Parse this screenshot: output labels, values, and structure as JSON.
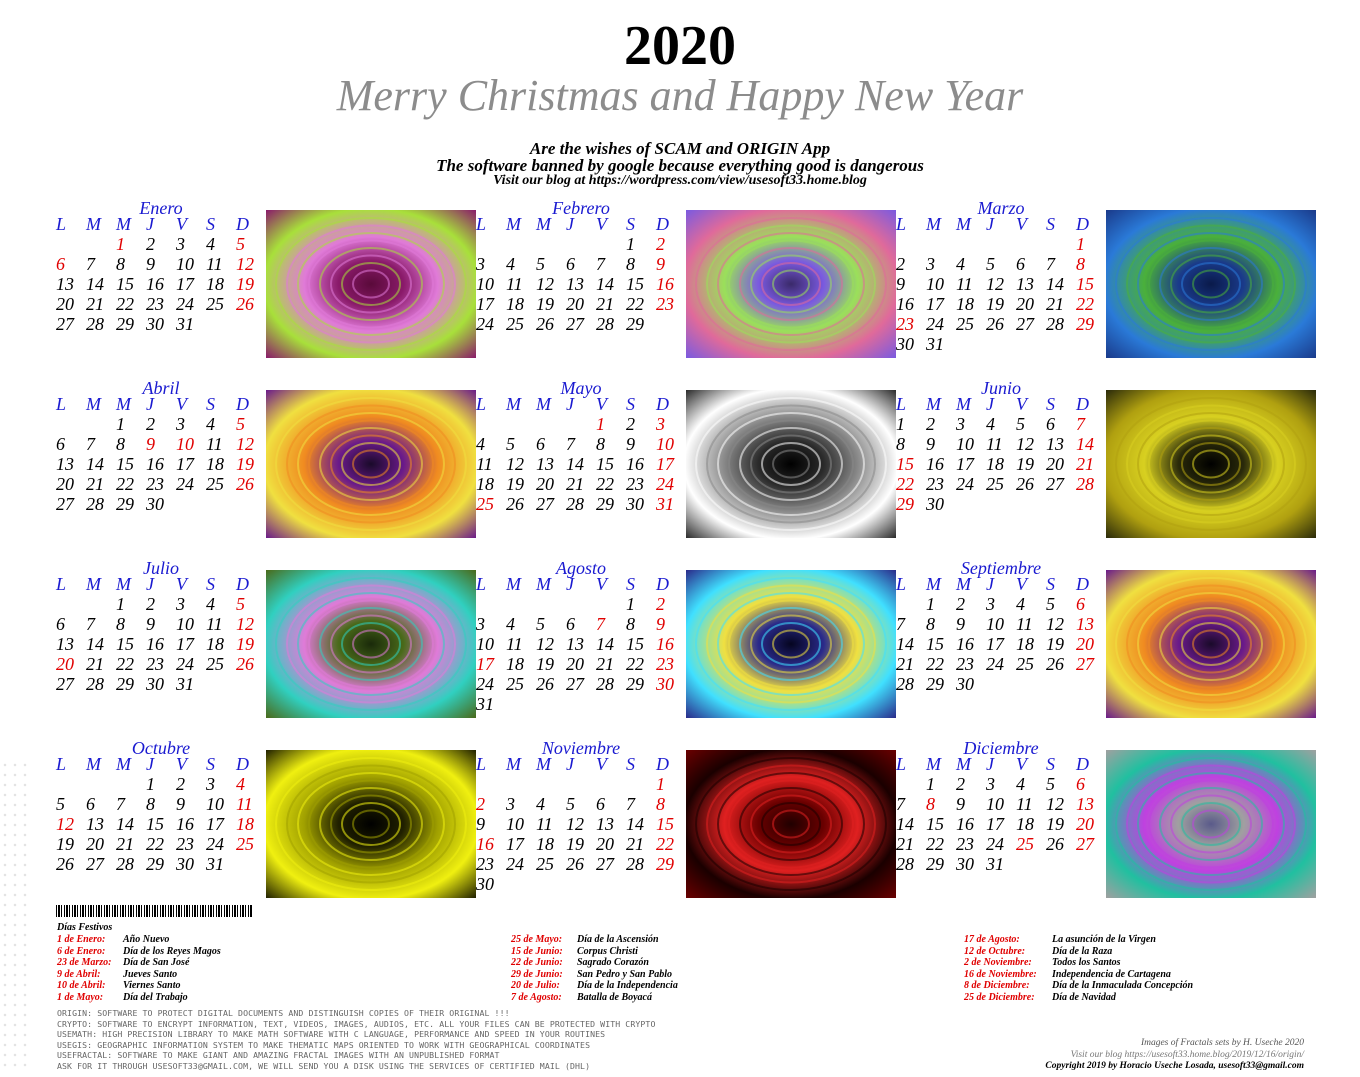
{
  "header": {
    "year": "2020",
    "greeting": "Merry Christmas and Happy New Year",
    "wish1": "Are the wishes of SCAM and ORIGIN App",
    "wish2": "The software banned by google because everything good is dangerous",
    "wish3": "Visit our blog at https://wordpress.com/view/usesoft33.home.blog"
  },
  "weekdays": [
    "L",
    "M",
    "M",
    "J",
    "V",
    "S",
    "D"
  ],
  "months": [
    {
      "name": "Enero",
      "offset": 2,
      "days": 31,
      "red": [
        1,
        6
      ]
    },
    {
      "name": "Febrero",
      "offset": 5,
      "days": 29,
      "red": []
    },
    {
      "name": "Marzo",
      "offset": 6,
      "days": 31,
      "red": [
        23
      ]
    },
    {
      "name": "Abril",
      "offset": 2,
      "days": 30,
      "red": [
        9,
        10
      ]
    },
    {
      "name": "Mayo",
      "offset": 4,
      "days": 31,
      "red": [
        1,
        25
      ]
    },
    {
      "name": "Junio",
      "offset": 0,
      "days": 30,
      "red": [
        15,
        22,
        29
      ]
    },
    {
      "name": "Julio",
      "offset": 2,
      "days": 31,
      "red": [
        20
      ]
    },
    {
      "name": "Agosto",
      "offset": 5,
      "days": 31,
      "red": [
        7,
        17
      ]
    },
    {
      "name": "Septiembre",
      "offset": 1,
      "days": 30,
      "red": []
    },
    {
      "name": "Octubre",
      "offset": 3,
      "days": 31,
      "red": [
        12
      ]
    },
    {
      "name": "Noviembre",
      "offset": 6,
      "days": 30,
      "red": [
        2,
        16
      ]
    },
    {
      "name": "Diciembre",
      "offset": 1,
      "days": 31,
      "red": [
        8,
        25
      ]
    }
  ],
  "fractals": [
    {
      "name": "fractal-image-enero",
      "bg": "#a8e03a",
      "c1": "#e07ad8",
      "c2": "#8a1a6a",
      "c3": "#5a0a3a"
    },
    {
      "name": "fractal-image-febrero",
      "bg": "#e06a9a",
      "c1": "#9ae05a",
      "c2": "#7a5ae0",
      "c3": "#3a2a6a"
    },
    {
      "name": "fractal-image-marzo",
      "bg": "#2a7ad8",
      "c1": "#4ab03a",
      "c2": "#1a3a8a",
      "c3": "#0a1a4a"
    },
    {
      "name": "fractal-image-abril",
      "bg": "#f0e040",
      "c1": "#f08a20",
      "c2": "#6a1a8a",
      "c3": "#1a0a2a"
    },
    {
      "name": "fractal-image-mayo",
      "bg": "#ffffff",
      "c1": "#888888",
      "c2": "#2a2a2a",
      "c3": "#000000"
    },
    {
      "name": "fractal-image-junio",
      "bg": "#b0a010",
      "c1": "#d8d020",
      "c2": "#2a2a0a",
      "c3": "#000000"
    },
    {
      "name": "fractal-image-julio",
      "bg": "#30d0c0",
      "c1": "#e07ad8",
      "c2": "#4a6a1a",
      "c3": "#1a2a0a"
    },
    {
      "name": "fractal-image-agosto",
      "bg": "#40e0ff",
      "c1": "#f0e040",
      "c2": "#2a2a8a",
      "c3": "#050520"
    },
    {
      "name": "fractal-image-septiembre",
      "bg": "#f0e040",
      "c1": "#f08a20",
      "c2": "#6a1a8a",
      "c3": "#1a0a2a"
    },
    {
      "name": "fractal-image-octubre",
      "bg": "#f0f010",
      "c1": "#a0a000",
      "c2": "#202000",
      "c3": "#000000"
    },
    {
      "name": "fractal-image-noviembre",
      "bg": "#1a0000",
      "c1": "#e02020",
      "c2": "#6a0000",
      "c3": "#200000"
    },
    {
      "name": "fractal-image-diciembre",
      "bg": "#20c0a0",
      "c1": "#c040e0",
      "c2": "#a0a0a0",
      "c3": "#5a5a8a"
    }
  ],
  "holidays_title": "Días Festivos",
  "holidays": [
    [
      {
        "date": "1 de Enero:",
        "name": "Año Nuevo"
      },
      {
        "date": "6 de Enero:",
        "name": "Día de los Reyes Magos"
      },
      {
        "date": "23 de Marzo:",
        "name": "Día de San José"
      },
      {
        "date": "9 de Abril:",
        "name": "Jueves Santo"
      },
      {
        "date": "10 de Abril:",
        "name": "Viernes Santo"
      },
      {
        "date": "1 de Mayo:",
        "name": "Día del Trabajo"
      }
    ],
    [
      {
        "date": "25 de Mayo:",
        "name": "Día de la Ascensión"
      },
      {
        "date": "15 de Junio:",
        "name": "Corpus Christi"
      },
      {
        "date": "22 de Junio:",
        "name": "Sagrado Corazón"
      },
      {
        "date": "29 de Junio:",
        "name": "San Pedro y San Pablo"
      },
      {
        "date": "20 de Julio:",
        "name": "Día de la Independencia"
      },
      {
        "date": "7 de Agosto:",
        "name": "Batalla de Boyacá"
      }
    ],
    [
      {
        "date": "17 de Agosto:",
        "name": "La asunción de la Virgen"
      },
      {
        "date": "12 de Octubre:",
        "name": "Día de la Raza"
      },
      {
        "date": "2 de Noviembre:",
        "name": "Todos los Santos"
      },
      {
        "date": "16 de Noviembre:",
        "name": "Independencia de Cartagena"
      },
      {
        "date": "8 de Diciembre:",
        "name": "Día de la Inmaculada Concepción"
      },
      {
        "date": "25 de Diciembre:",
        "name": "Día de Navidad"
      }
    ]
  ],
  "software": [
    "ORIGIN: SOFTWARE TO PROTECT DIGITAL DOCUMENTS AND DISTINGUISH COPIES OF THEIR ORIGINAL !!!",
    "CRYPTO: SOFTWARE TO ENCRYPT INFORMATION, TEXT, VIDEOS, IMAGES, AUDIOS, ETC. ALL YOUR FILES CAN BE PROTECTED WITH CRYPTO",
    "USEMATH: HIGH PRECISION LIBRARY TO MAKE MATH SOFTWARE WITH C LANGUAGE, PERFORMANCE AND SPEED IN YOUR ROUTINES",
    "USEGIS: GEOGRAPHIC INFORMATION SYSTEM TO MAKE THEMATIC MAPS ORIENTED TO WORK WITH GEOGRAPHICAL COORDINATES",
    "USEFRACTAL: SOFTWARE TO MAKE GIANT AND AMAZING FRACTAL IMAGES WITH AN UNPUBLISHED FORMAT",
    "ASK FOR IT THROUGH USESOFT33@GMAIL.COM, WE WILL SEND YOU A DISK USING THE SERVICES OF CERTIFIED MAIL (DHL)"
  ],
  "credits": [
    "Images of Fractals sets by H. Useche 2020",
    "Visit our blog https://usesoft33.home.blog/2019/12/16/origin/",
    "Copyright 2019 by Horacio Useche Losada, usesoft33@gmail.com"
  ]
}
